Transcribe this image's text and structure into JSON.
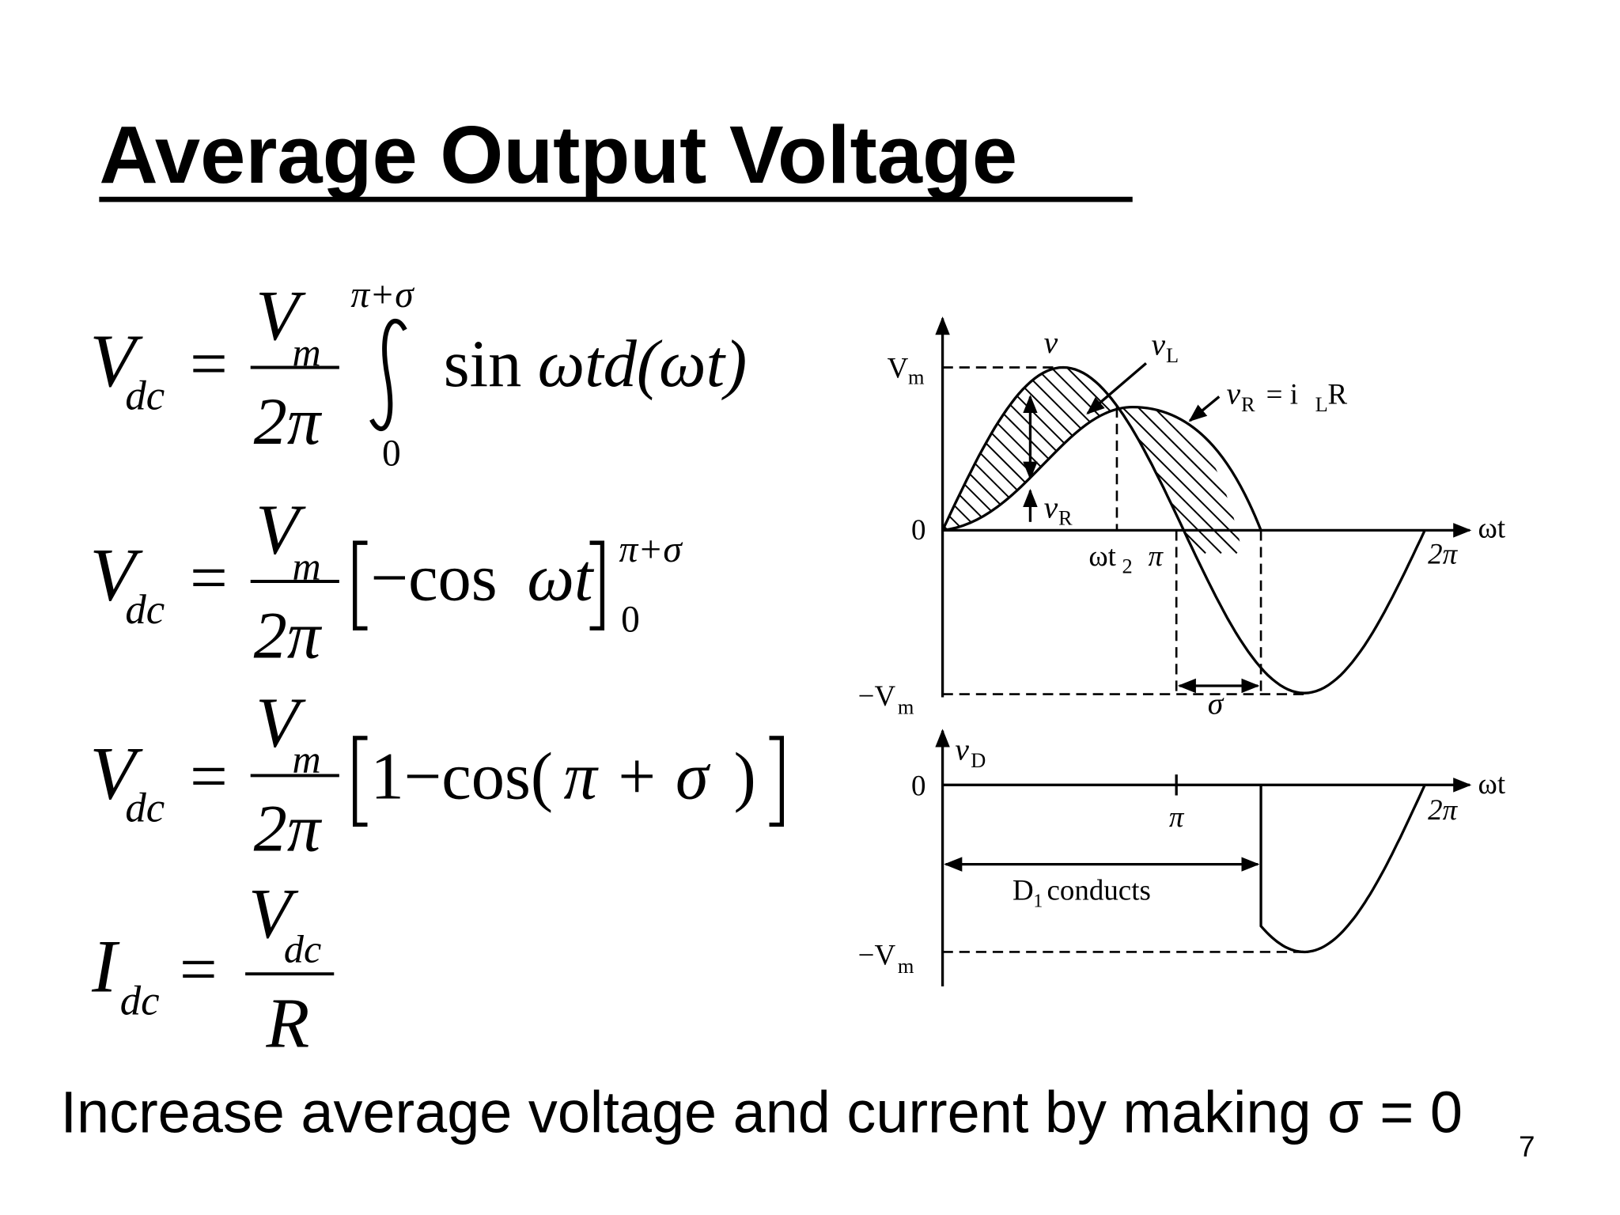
{
  "title": "Average Output Voltage",
  "equations": [
    {
      "lhs": [
        "V",
        "dc"
      ],
      "eq": "=",
      "num": [
        "V",
        "m"
      ],
      "den": "2π",
      "upper": "π+σ",
      "lower": "0",
      "body": [
        "sin",
        "ωtd(ωt)"
      ]
    },
    {
      "lhs": [
        "V",
        "dc"
      ],
      "eq": "=",
      "num": [
        "V",
        "m"
      ],
      "den": "2π",
      "body": [
        "−cos",
        "ωt"
      ],
      "upper": "π+σ",
      "lower": "0"
    },
    {
      "lhs": [
        "V",
        "dc"
      ],
      "eq": "=",
      "num": [
        "V",
        "m"
      ],
      "den": "2π",
      "body": [
        "1−cos(",
        "π + σ",
        ")"
      ]
    },
    {
      "lhs": [
        "I",
        "dc"
      ],
      "eq": "=",
      "num": [
        "V",
        "dc"
      ],
      "den": "R"
    }
  ],
  "diagram": {
    "upper": {
      "vm_label": [
        "V",
        "m"
      ],
      "zero_label": "0",
      "neg_vm_label": [
        "−V",
        "m"
      ],
      "v_label": "v",
      "vl_label": [
        "v",
        "L"
      ],
      "vr_eq_label": [
        "v",
        "R",
        "= i",
        "L",
        "R"
      ],
      "vr_label": [
        "v",
        "R"
      ],
      "axis_label": "ωt",
      "two_pi": "2π",
      "omega_t2": [
        "ωt",
        "2"
      ],
      "pi": "π",
      "sigma": "σ"
    },
    "lower": {
      "vd_label": [
        "v",
        "D"
      ],
      "zero_label": "0",
      "neg_vm_label": [
        "−V",
        "m"
      ],
      "pi": "π",
      "axis_label": "ωt",
      "two_pi": "2π",
      "conducts": [
        "D",
        "1",
        "conducts"
      ]
    }
  },
  "footer": "Increase average voltage and current by making σ = 0",
  "page_number": "7"
}
